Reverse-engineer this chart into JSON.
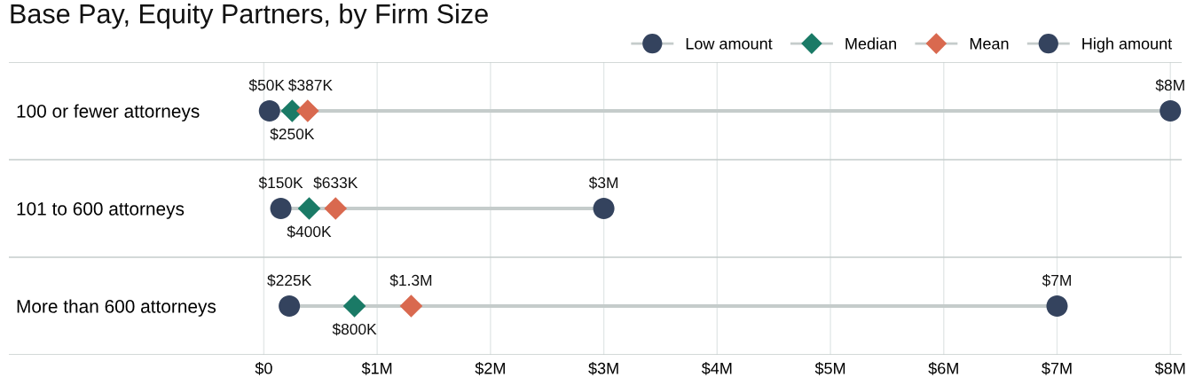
{
  "chart_data": {
    "type": "scatter",
    "orientation": "horizontal",
    "title": "Base Pay, Equity Partners, by Firm Size",
    "categories": [
      "100 or fewer attorneys",
      "101 to 600 attorneys",
      "More than 600 attorneys"
    ],
    "series": [
      {
        "name": "Low amount",
        "color": "#34435e",
        "marker": "circle",
        "values": [
          50000,
          150000,
          225000
        ],
        "value_labels": [
          "$50K",
          "$150K",
          "$225K"
        ]
      },
      {
        "name": "Median",
        "color": "#1a7a66",
        "marker": "diamond",
        "values": [
          250000,
          400000,
          800000
        ],
        "value_labels": [
          "$250K",
          "$400K",
          "$800K"
        ]
      },
      {
        "name": "Mean",
        "color": "#d9694f",
        "marker": "diamond",
        "values": [
          387000,
          633000,
          1300000
        ],
        "value_labels": [
          "$387K",
          "$633K",
          "$1.3M"
        ]
      },
      {
        "name": "High amount",
        "color": "#34435e",
        "marker": "circle",
        "values": [
          8000000,
          3000000,
          7000000
        ],
        "value_labels": [
          "$8M",
          "$3M",
          "$7M"
        ]
      }
    ],
    "xlim": [
      -2250000,
      8100000
    ],
    "xticks": [
      {
        "value": 0,
        "label": "$0"
      },
      {
        "value": 1000000,
        "label": "$1M"
      },
      {
        "value": 2000000,
        "label": "$2M"
      },
      {
        "value": 3000000,
        "label": "$3M"
      },
      {
        "value": 4000000,
        "label": "$4M"
      },
      {
        "value": 5000000,
        "label": "$5M"
      },
      {
        "value": 6000000,
        "label": "$6M"
      },
      {
        "value": 7000000,
        "label": "$7M"
      },
      {
        "value": 8000000,
        "label": "$8M"
      }
    ],
    "grid": "x",
    "legend": "top right"
  }
}
